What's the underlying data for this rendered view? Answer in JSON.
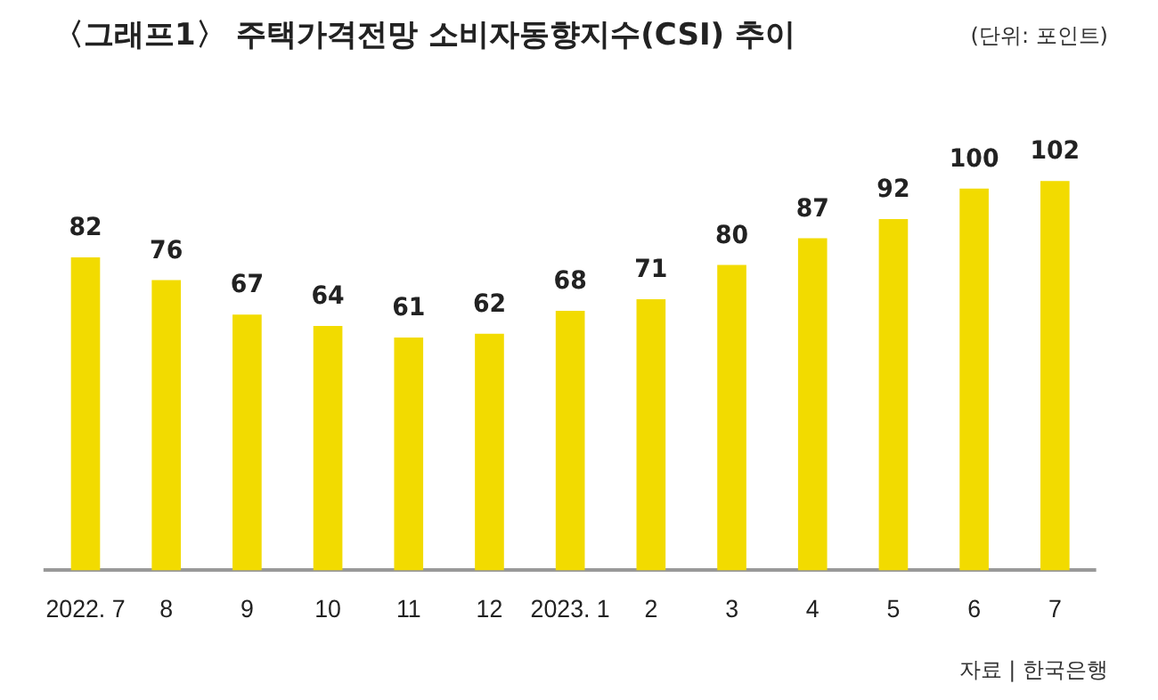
{
  "chart_data": {
    "type": "bar",
    "title": "〈그래프1〉 주택가격전망 소비자동향지수(CSI) 추이",
    "subtitle": "(단위: 포인트)",
    "annotations": [
      "자료 | 한국은행"
    ],
    "categories": [
      "2022. 7",
      "8",
      "9",
      "10",
      "11",
      "12",
      "2023. 1",
      "2",
      "3",
      "4",
      "5",
      "6",
      "7"
    ],
    "values": [
      82,
      76,
      67,
      64,
      61,
      62,
      68,
      71,
      80,
      87,
      92,
      100,
      102
    ],
    "color": "#f2db00",
    "data_labels": true,
    "grid": false,
    "legend": false
  }
}
